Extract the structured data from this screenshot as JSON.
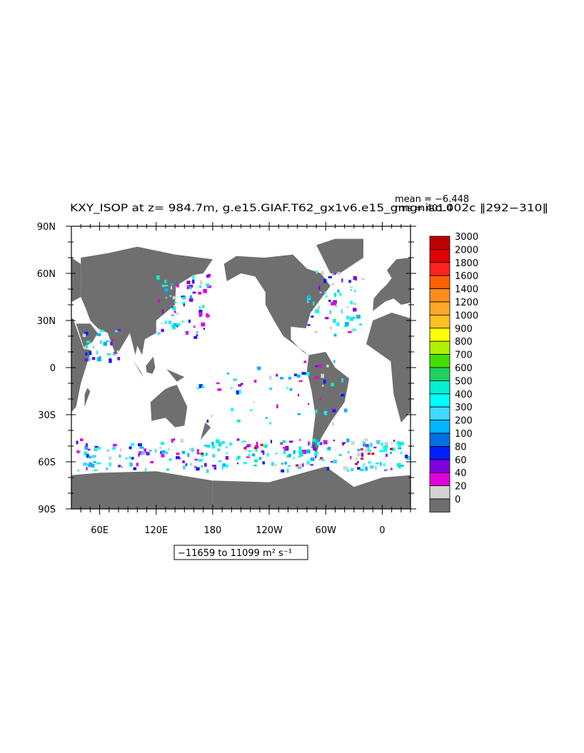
{
  "figure": {
    "title": "KXY_ISOP at z= 984.7m, g.e15.GIAF.T62_gx1v6.e15_gmgniso.002c ‖292−310‖",
    "stats": {
      "mean_label": "mean = −6.448",
      "rms_label": "rms = 401.4"
    },
    "range_label": "−11659 to 11099 m² s⁻¹",
    "variable": "KXY_ISOP",
    "depth": "984.7m",
    "experiment": "g.e15.GIAF.T62_gx1v6.e15_gmgniso.002c",
    "years": "292−310",
    "range_min": -11659,
    "range_max": 11099,
    "units": "m² s⁻¹"
  },
  "map": {
    "lat_ticks": [
      "90N",
      "60N",
      "30N",
      "0",
      "30S",
      "60S",
      "90S"
    ],
    "lon_ticks": [
      "60E",
      "120E",
      "180",
      "120W",
      "60W",
      "0"
    ],
    "lat_values": [
      90,
      60,
      30,
      0,
      -30,
      -60,
      -90
    ],
    "lon_values": [
      60,
      120,
      180,
      240,
      300,
      360
    ],
    "lon_range": [
      30,
      390
    ],
    "land_color": "#6f6f6f",
    "ocean_color": "#ffffff"
  },
  "colorbar": {
    "labels": [
      "3000",
      "2000",
      "1800",
      "1600",
      "1400",
      "1200",
      "1000",
      "900",
      "800",
      "700",
      "600",
      "500",
      "400",
      "300",
      "200",
      "100",
      "80",
      "60",
      "40",
      "20",
      "0"
    ],
    "colors": [
      "#c00000",
      "#e00000",
      "#ff2020",
      "#ff6000",
      "#ff8c1a",
      "#ffa726",
      "#ffc020",
      "#ffff00",
      "#b0f000",
      "#40e000",
      "#20d060",
      "#00f0d0",
      "#00ffff",
      "#40d8ff",
      "#00b4ff",
      "#0070e0",
      "#0020ff",
      "#8000e0",
      "#e000e0",
      "#d3d3d3",
      "#6f6f6f"
    ]
  }
}
